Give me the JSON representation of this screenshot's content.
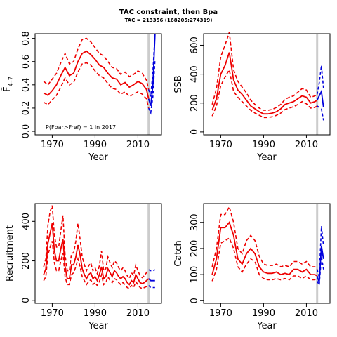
{
  "header": {
    "title": "TAC constraint, then Bpa",
    "subtitle": "TAC = 213356 (168205;274319)"
  },
  "colors": {
    "historic": "#ee0000",
    "projection": "#0000dd",
    "marker": "#cccccc",
    "axis": "#000000"
  },
  "chart_data": [
    {
      "id": "fbar",
      "type": "line",
      "xlabel": "Year",
      "ylabel": "F̄",
      "ylabel_sub": "4–7",
      "xlim": [
        1962,
        2021
      ],
      "ylim": [
        -0.03,
        0.84
      ],
      "xticks": [
        1970,
        1990,
        2010
      ],
      "yticks": [
        0.0,
        0.2,
        0.4,
        0.6,
        0.8
      ],
      "ytick_labels": [
        "0.0",
        "0.2",
        "0.4",
        "0.6",
        "0.8"
      ],
      "annotation": "P(Fbar>Fref) = 1  in 2017",
      "marker_year": 2015,
      "historic": {
        "years": [
          1966,
          1968,
          1970,
          1972,
          1974,
          1976,
          1978,
          1980,
          1982,
          1984,
          1986,
          1988,
          1990,
          1992,
          1994,
          1996,
          1998,
          2000,
          2002,
          2004,
          2006,
          2008,
          2010,
          2012,
          2014,
          2015
        ],
        "median": [
          0.33,
          0.31,
          0.35,
          0.4,
          0.48,
          0.55,
          0.48,
          0.5,
          0.6,
          0.67,
          0.69,
          0.66,
          0.62,
          0.57,
          0.55,
          0.5,
          0.46,
          0.45,
          0.4,
          0.42,
          0.38,
          0.4,
          0.43,
          0.41,
          0.36,
          0.28
        ],
        "lower": [
          0.25,
          0.23,
          0.27,
          0.31,
          0.38,
          0.46,
          0.4,
          0.42,
          0.51,
          0.58,
          0.59,
          0.57,
          0.52,
          0.48,
          0.46,
          0.41,
          0.37,
          0.36,
          0.32,
          0.34,
          0.3,
          0.32,
          0.34,
          0.32,
          0.28,
          0.2
        ],
        "upper": [
          0.43,
          0.4,
          0.45,
          0.5,
          0.59,
          0.67,
          0.58,
          0.6,
          0.71,
          0.79,
          0.8,
          0.77,
          0.72,
          0.67,
          0.65,
          0.6,
          0.55,
          0.54,
          0.49,
          0.51,
          0.47,
          0.49,
          0.52,
          0.5,
          0.44,
          0.36
        ]
      },
      "projection": {
        "years": [
          2015,
          2016,
          2017,
          2018
        ],
        "median": [
          0.28,
          0.22,
          0.4,
          0.84
        ],
        "lower": [
          0.2,
          0.16,
          0.3,
          0.62
        ],
        "upper": [
          0.36,
          0.3,
          0.52,
          0.84
        ]
      }
    },
    {
      "id": "ssb",
      "type": "line",
      "xlabel": "Year",
      "ylabel": "SSB",
      "xlim": [
        1962,
        2021
      ],
      "ylim": [
        -20,
        680
      ],
      "xticks": [
        1970,
        1990,
        2010
      ],
      "yticks": [
        0,
        200,
        400,
        600
      ],
      "ytick_labels": [
        "0",
        "200",
        "400",
        "600"
      ],
      "marker_year": 2015,
      "historic": {
        "years": [
          1966,
          1968,
          1970,
          1972,
          1974,
          1976,
          1978,
          1980,
          1982,
          1984,
          1986,
          1988,
          1990,
          1992,
          1994,
          1996,
          1998,
          2000,
          2002,
          2004,
          2006,
          2008,
          2010,
          2012,
          2014,
          2015
        ],
        "median": [
          150,
          230,
          400,
          460,
          550,
          360,
          290,
          260,
          220,
          180,
          160,
          140,
          125,
          125,
          130,
          140,
          160,
          190,
          200,
          210,
          230,
          250,
          240,
          200,
          210,
          220
        ],
        "lower": [
          110,
          180,
          320,
          380,
          430,
          280,
          240,
          210,
          180,
          150,
          130,
          115,
          100,
          100,
          105,
          115,
          130,
          155,
          165,
          175,
          190,
          210,
          195,
          165,
          170,
          180
        ],
        "upper": [
          190,
          300,
          520,
          600,
          690,
          430,
          350,
          310,
          270,
          220,
          190,
          165,
          150,
          150,
          155,
          170,
          190,
          225,
          240,
          250,
          275,
          300,
          290,
          240,
          250,
          260
        ]
      },
      "projection": {
        "years": [
          2015,
          2016,
          2017,
          2018
        ],
        "median": [
          220,
          250,
          280,
          170
        ],
        "lower": [
          180,
          170,
          160,
          80
        ],
        "upper": [
          260,
          340,
          460,
          300
        ]
      }
    },
    {
      "id": "recruitment",
      "type": "line",
      "xlabel": "Year",
      "ylabel": "Recruitment",
      "xlim": [
        1962,
        2021
      ],
      "ylim": [
        -15,
        490
      ],
      "xticks": [
        1970,
        1990,
        2010
      ],
      "yticks": [
        0,
        200,
        400
      ],
      "ytick_labels": [
        "0",
        "200",
        "400"
      ],
      "marker_year": 2015,
      "historic": {
        "years": [
          1966,
          1967,
          1968,
          1969,
          1970,
          1971,
          1972,
          1973,
          1974,
          1975,
          1976,
          1977,
          1978,
          1979,
          1980,
          1981,
          1982,
          1983,
          1984,
          1985,
          1986,
          1987,
          1988,
          1989,
          1990,
          1991,
          1992,
          1993,
          1994,
          1995,
          1996,
          1997,
          1998,
          1999,
          2000,
          2001,
          2002,
          2003,
          2004,
          2005,
          2006,
          2007,
          2008,
          2009,
          2010,
          2011,
          2012,
          2013,
          2014,
          2015
        ],
        "median": [
          130,
          160,
          290,
          340,
          390,
          250,
          200,
          200,
          260,
          310,
          170,
          110,
          110,
          180,
          180,
          220,
          280,
          230,
          160,
          130,
          110,
          130,
          140,
          110,
          120,
          100,
          130,
          170,
          110,
          120,
          160,
          140,
          120,
          150,
          140,
          120,
          110,
          120,
          110,
          90,
          80,
          100,
          90,
          130,
          110,
          90,
          85,
          90,
          100,
          110
        ],
        "lower": [
          100,
          120,
          230,
          270,
          300,
          190,
          150,
          150,
          200,
          240,
          120,
          80,
          80,
          130,
          140,
          170,
          210,
          170,
          120,
          100,
          80,
          95,
          105,
          80,
          90,
          75,
          95,
          130,
          80,
          90,
          120,
          100,
          90,
          110,
          105,
          90,
          80,
          90,
          80,
          65,
          60,
          75,
          65,
          95,
          80,
          65,
          60,
          65,
          70,
          75
        ],
        "upper": [
          170,
          210,
          380,
          450,
          480,
          330,
          270,
          270,
          350,
          430,
          230,
          150,
          150,
          240,
          240,
          300,
          390,
          310,
          220,
          180,
          150,
          175,
          190,
          150,
          165,
          135,
          175,
          250,
          150,
          160,
          220,
          190,
          165,
          200,
          190,
          165,
          150,
          165,
          150,
          125,
          110,
          140,
          125,
          180,
          150,
          125,
          115,
          125,
          140,
          155
        ]
      },
      "projection": {
        "years": [
          2015,
          2016,
          2017,
          2018
        ],
        "median": [
          110,
          100,
          100,
          100
        ],
        "lower": [
          75,
          65,
          65,
          65
        ],
        "upper": [
          155,
          150,
          150,
          155
        ]
      }
    },
    {
      "id": "catch",
      "type": "line",
      "xlabel": "Year",
      "ylabel": "Catch",
      "xlim": [
        1962,
        2021
      ],
      "ylim": [
        -10,
        372
      ],
      "xticks": [
        1970,
        1990,
        2010
      ],
      "yticks": [
        0,
        100,
        200,
        300
      ],
      "ytick_labels": [
        "0",
        "100",
        "200",
        "300"
      ],
      "marker_year": 2015,
      "historic": {
        "years": [
          1966,
          1968,
          1970,
          1972,
          1974,
          1976,
          1978,
          1980,
          1982,
          1984,
          1986,
          1988,
          1990,
          1992,
          1994,
          1996,
          1998,
          2000,
          2002,
          2004,
          2006,
          2008,
          2010,
          2012,
          2014,
          2015
        ],
        "median": [
          100,
          160,
          280,
          280,
          300,
          250,
          160,
          140,
          180,
          200,
          180,
          130,
          110,
          105,
          105,
          110,
          100,
          105,
          100,
          120,
          120,
          110,
          120,
          100,
          100,
          95
        ],
        "lower": [
          75,
          120,
          220,
          230,
          240,
          200,
          130,
          110,
          140,
          160,
          150,
          100,
          85,
          80,
          80,
          85,
          80,
          85,
          80,
          95,
          95,
          85,
          95,
          80,
          80,
          75
        ],
        "upper": [
          130,
          200,
          330,
          330,
          360,
          300,
          200,
          180,
          230,
          250,
          230,
          170,
          140,
          135,
          135,
          140,
          130,
          135,
          130,
          150,
          150,
          140,
          150,
          130,
          130,
          120
        ]
      },
      "projection": {
        "years": [
          2015,
          2016,
          2017,
          2018
        ],
        "median": [
          95,
          70,
          210,
          160
        ],
        "lower": [
          75,
          60,
          170,
          120
        ],
        "upper": [
          120,
          90,
          285,
          210
        ]
      }
    }
  ]
}
